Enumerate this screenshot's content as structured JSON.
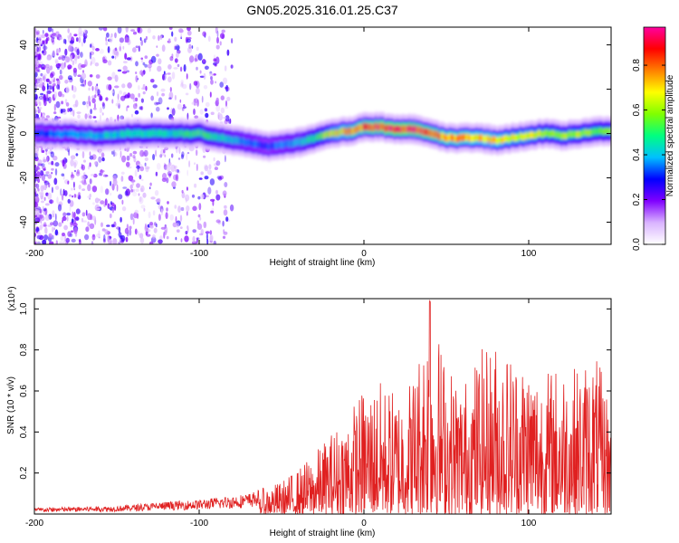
{
  "title": "GN05.2025.316.01.25.C37",
  "chart_data": [
    {
      "type": "heatmap",
      "xlabel": "Height of straight line (km)",
      "ylabel": "Frequency (Hz)",
      "xlim": [
        -200,
        150
      ],
      "ylim": [
        -50,
        48
      ],
      "xticks": [
        -200,
        -100,
        0,
        100
      ],
      "yticks": [
        -40,
        -20,
        0,
        20,
        40
      ],
      "colorbar": {
        "label": "Normalized spectral amplitude",
        "range": [
          0,
          0.97
        ],
        "ticks": [
          "0.0",
          "0.2",
          "0.4",
          "0.6",
          "0.8"
        ],
        "colors": [
          "#ffffff",
          "#d9b3ff",
          "#8000ff",
          "#0000ff",
          "#00c0ff",
          "#00ff80",
          "#80ff00",
          "#ffff00",
          "#ff8000",
          "#ff0000",
          "#ff00a0"
        ]
      },
      "ridge": {
        "x": [
          -200,
          -180,
          -160,
          -140,
          -120,
          -100,
          -80,
          -70,
          -60,
          -50,
          -40,
          -30,
          -20,
          -10,
          0,
          10,
          20,
          30,
          40,
          50,
          60,
          70,
          80,
          90,
          100,
          110,
          120,
          130,
          140,
          150
        ],
        "freq": [
          0,
          0,
          -1,
          0,
          0,
          0,
          -3,
          -4,
          -6,
          -5,
          -4,
          -2,
          0,
          1,
          3,
          3,
          2,
          2,
          0,
          -2,
          -2,
          -2,
          -3,
          -2,
          -1,
          0,
          -1,
          0,
          1,
          1
        ],
        "amplitude": [
          0.3,
          0.35,
          0.4,
          0.45,
          0.45,
          0.5,
          0.4,
          0.35,
          0.3,
          0.35,
          0.4,
          0.5,
          0.65,
          0.75,
          0.8,
          0.85,
          0.9,
          0.85,
          0.8,
          0.75,
          0.75,
          0.7,
          0.7,
          0.65,
          0.65,
          0.6,
          0.6,
          0.6,
          0.55,
          0.55
        ]
      }
    },
    {
      "type": "line",
      "xlabel": "Height of straight line (km)",
      "ylabel": "SNR (10 * v/v)",
      "yscale_label": "(x10⁴)",
      "xlim": [
        -200,
        150
      ],
      "ylim": [
        0,
        1.05
      ],
      "xticks": [
        -200,
        -100,
        0,
        100
      ],
      "yticks": [
        0.2,
        0.4,
        0.6,
        0.8,
        1.0
      ],
      "line_color": "#e02020",
      "series": [
        {
          "x": [
            -200,
            -150,
            -120,
            -100,
            -80,
            -70,
            -60,
            -50,
            -40,
            -30,
            -20,
            -10,
            0,
            10,
            20,
            30,
            40,
            50,
            60,
            70,
            80,
            90,
            100,
            110,
            120,
            130,
            140,
            150
          ],
          "envelope": [
            0.03,
            0.04,
            0.06,
            0.07,
            0.09,
            0.1,
            0.13,
            0.16,
            0.22,
            0.3,
            0.4,
            0.5,
            0.62,
            0.65,
            0.6,
            0.7,
            1.04,
            0.75,
            0.65,
            0.8,
            0.85,
            0.8,
            0.78,
            0.7,
            0.75,
            0.72,
            0.8,
            0.55
          ]
        }
      ]
    }
  ]
}
